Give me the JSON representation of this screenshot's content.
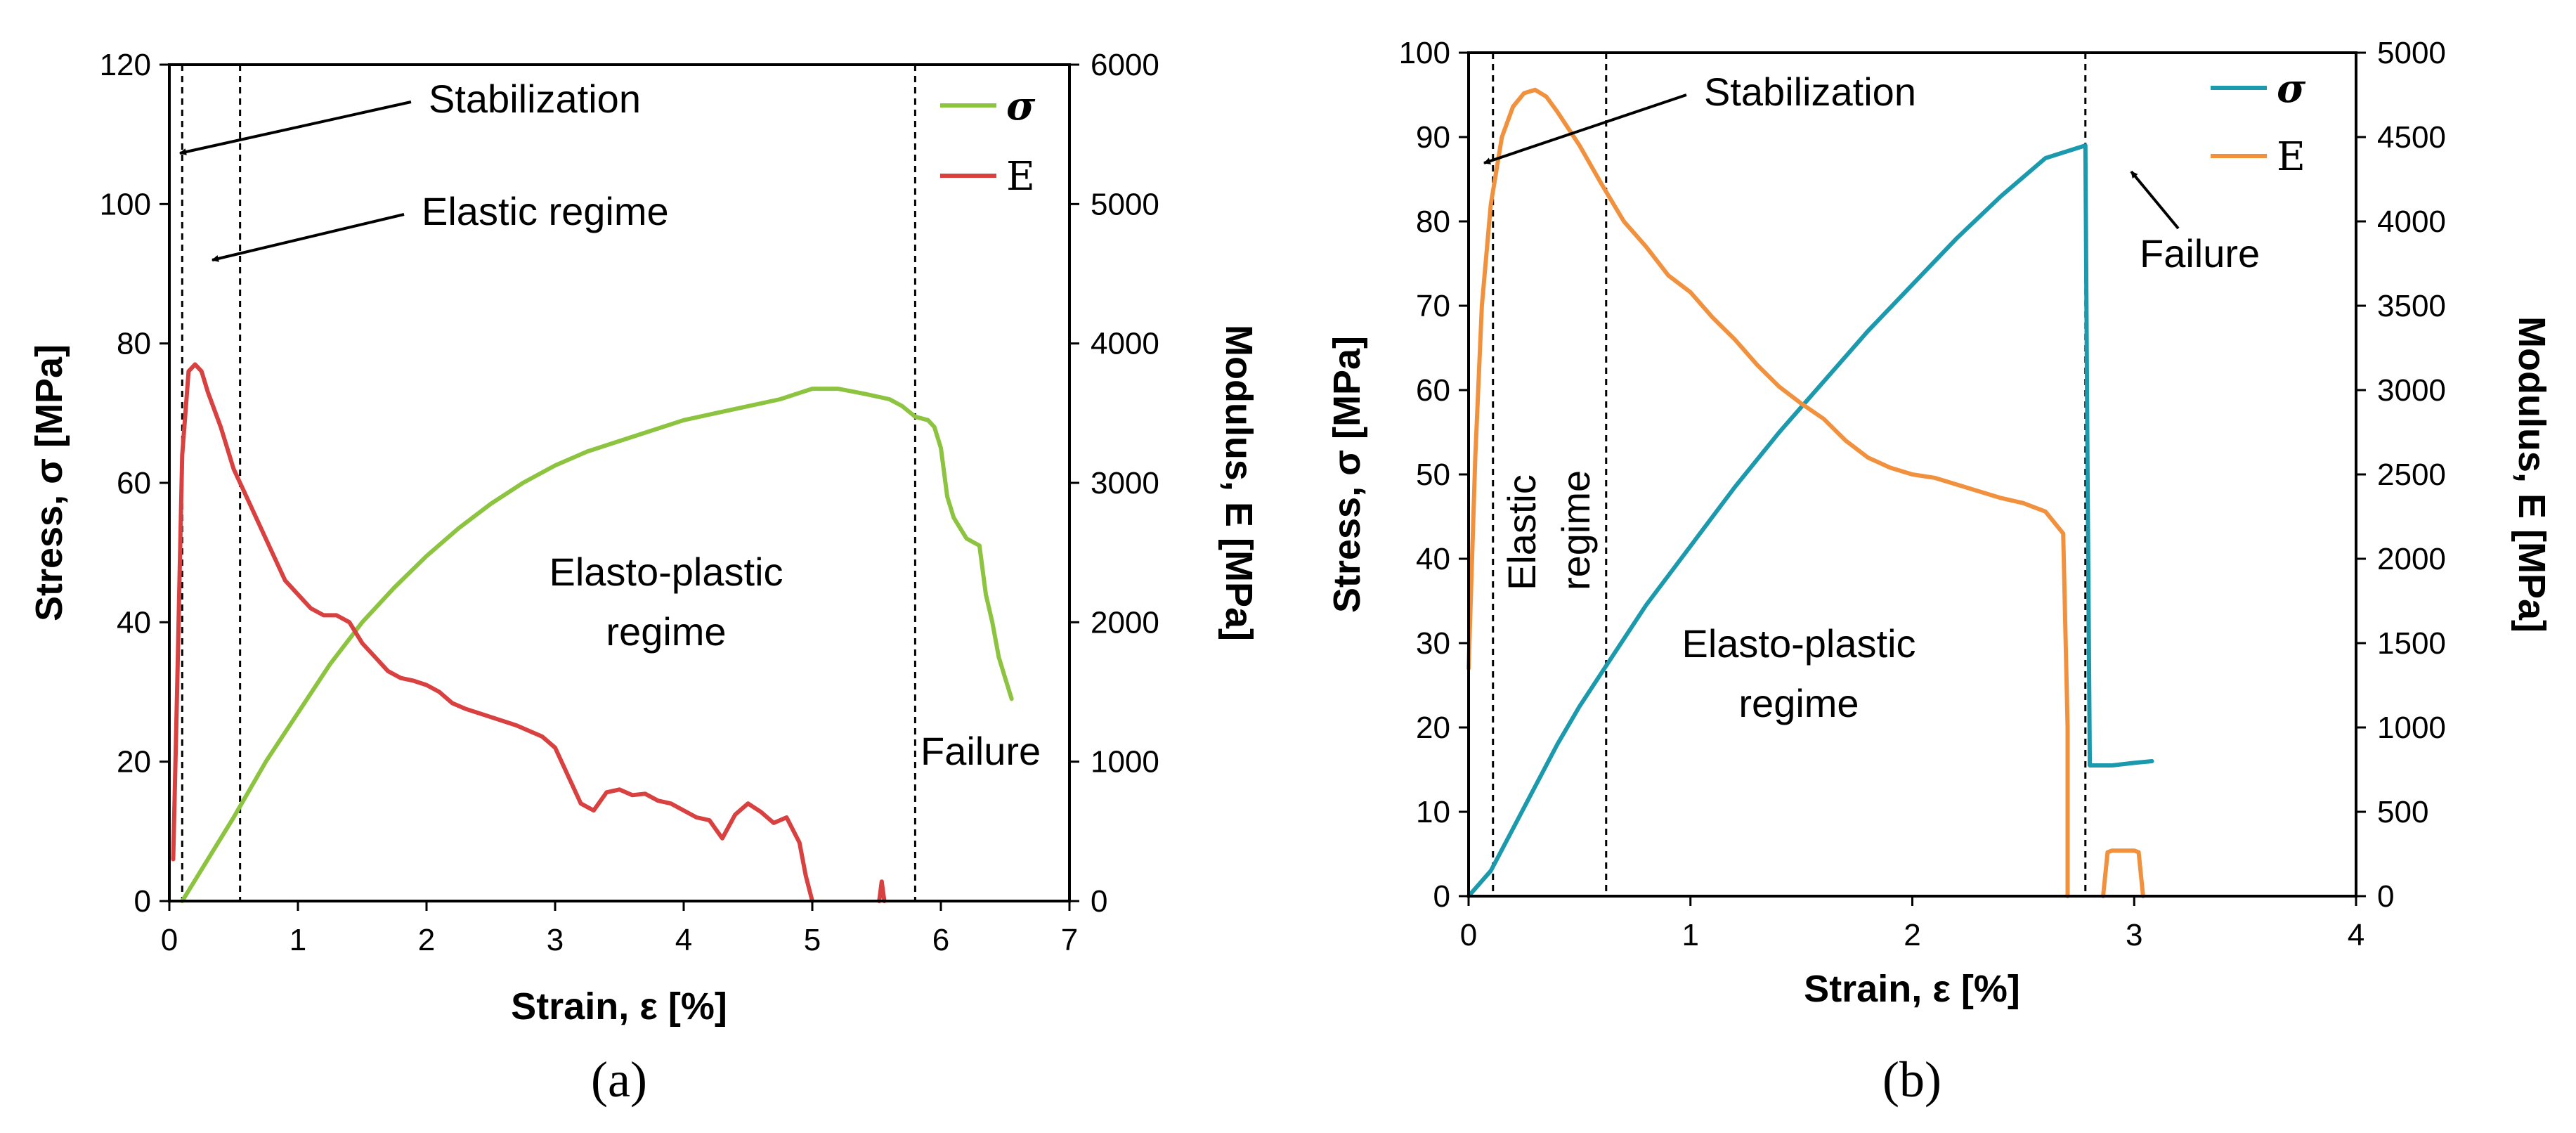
{
  "figure": {
    "panel_a_label": "(a)",
    "panel_b_label": "(b)"
  },
  "colors": {
    "a_stress": "#8cc43f",
    "a_modulus": "#d94040",
    "b_stress": "#1b9aad",
    "b_modulus": "#f2913d"
  },
  "chart_data": [
    {
      "type": "line",
      "panel": "a",
      "xlabel": "Strain, ε [%]",
      "ylabel": "Stress, σ [MPa]",
      "y2label": "Modulus, E [MPa]",
      "xlim": [
        0,
        7
      ],
      "ylim": [
        0,
        120
      ],
      "y2lim": [
        0,
        6000
      ],
      "xticks": [
        0,
        1,
        2,
        3,
        4,
        5,
        6,
        7
      ],
      "yticks": [
        0,
        20,
        40,
        60,
        80,
        100,
        120
      ],
      "y2ticks": [
        0,
        1000,
        2000,
        3000,
        4000,
        5000,
        6000
      ],
      "vlines": [
        0.1,
        0.55,
        5.8
      ],
      "legend": [
        "σ",
        "E"
      ],
      "annotations": {
        "stabilization": "Stabilization",
        "elastic": "Elastic regime",
        "elasto_plastic_1": "Elasto-plastic",
        "elasto_plastic_2": "regime",
        "failure": "Failure"
      },
      "series": [
        {
          "name": "σ",
          "axis": "left",
          "x": [
            0.1,
            0.2,
            0.3,
            0.5,
            0.75,
            1.0,
            1.25,
            1.5,
            1.75,
            2.0,
            2.25,
            2.5,
            2.75,
            3.0,
            3.25,
            3.5,
            3.75,
            4.0,
            4.25,
            4.5,
            4.75,
            5.0,
            5.2,
            5.4,
            5.6,
            5.7,
            5.8,
            5.9,
            5.95,
            6.0,
            6.05,
            6.1,
            6.2,
            6.3,
            6.35,
            6.4,
            6.45,
            6.5,
            6.55
          ],
          "values": [
            0,
            3,
            6,
            12,
            20,
            27,
            34,
            40,
            45,
            49.5,
            53.5,
            57,
            60,
            62.5,
            64.5,
            66,
            67.5,
            69,
            70,
            71,
            72,
            73.5,
            73.5,
            72.8,
            72,
            71,
            69.5,
            69,
            68,
            65,
            58,
            55,
            52,
            51,
            44,
            40,
            35,
            32,
            29
          ]
        },
        {
          "name": "E",
          "axis": "right",
          "x": [
            0.03,
            0.06,
            0.1,
            0.15,
            0.2,
            0.25,
            0.3,
            0.4,
            0.5,
            0.6,
            0.7,
            0.8,
            0.9,
            1.0,
            1.1,
            1.2,
            1.3,
            1.4,
            1.5,
            1.6,
            1.7,
            1.8,
            1.9,
            2.0,
            2.1,
            2.2,
            2.3,
            2.5,
            2.7,
            2.9,
            3.0,
            3.1,
            3.2,
            3.3,
            3.4,
            3.5,
            3.6,
            3.7,
            3.8,
            3.9,
            4.0,
            4.1,
            4.2,
            4.3,
            4.4,
            4.5,
            4.6,
            4.7,
            4.8,
            4.9,
            4.95,
            5.0
          ],
          "values": [
            300,
            1500,
            3200,
            3800,
            3850,
            3800,
            3650,
            3400,
            3100,
            2900,
            2700,
            2500,
            2300,
            2200,
            2100,
            2050,
            2050,
            2000,
            1850,
            1750,
            1650,
            1600,
            1580,
            1550,
            1500,
            1420,
            1380,
            1320,
            1260,
            1180,
            1100,
            900,
            700,
            650,
            780,
            800,
            760,
            770,
            720,
            700,
            650,
            600,
            580,
            450,
            620,
            700,
            640,
            560,
            600,
            420,
            180,
            0
          ]
        },
        {
          "name": "E",
          "axis": "right",
          "x": [
            5.52,
            5.54,
            5.56
          ],
          "values": [
            0,
            140,
            0
          ]
        }
      ]
    },
    {
      "type": "line",
      "panel": "b",
      "xlabel": "Strain, ε [%]",
      "ylabel": "Stress, σ [MPa]",
      "y2label": "Modulus, E [MPa]",
      "xlim": [
        0,
        4
      ],
      "ylim": [
        0,
        100
      ],
      "y2lim": [
        0,
        5000
      ],
      "xticks": [
        0,
        1,
        2,
        3,
        4
      ],
      "yticks": [
        0,
        10,
        20,
        30,
        40,
        50,
        60,
        70,
        80,
        90,
        100
      ],
      "y2ticks": [
        0,
        500,
        1000,
        1500,
        2000,
        2500,
        3000,
        3500,
        4000,
        4500,
        5000
      ],
      "vlines": [
        0.11,
        0.62,
        2.78
      ],
      "legend": [
        "σ",
        "E"
      ],
      "annotations": {
        "stabilization": "Stabilization",
        "elastic_1": "Elastic",
        "elastic_2": "regime",
        "elasto_plastic_1": "Elasto-plastic",
        "elasto_plastic_2": "regime",
        "failure": "Failure"
      },
      "series": [
        {
          "name": "σ",
          "axis": "left",
          "x": [
            0,
            0.05,
            0.1,
            0.2,
            0.3,
            0.4,
            0.5,
            0.6,
            0.8,
            1.0,
            1.2,
            1.4,
            1.6,
            1.8,
            2.0,
            2.2,
            2.4,
            2.6,
            2.78,
            2.79,
            2.8,
            2.9,
            3.0,
            3.08
          ],
          "values": [
            0,
            1.5,
            3,
            8,
            13,
            18,
            22.5,
            26.5,
            34.5,
            41.5,
            48.5,
            55,
            61,
            67,
            72.5,
            78,
            83,
            87.5,
            89,
            50,
            15.5,
            15.5,
            15.8,
            16
          ]
        },
        {
          "name": "E",
          "axis": "right",
          "x": [
            0,
            0.03,
            0.06,
            0.1,
            0.15,
            0.2,
            0.25,
            0.3,
            0.35,
            0.4,
            0.5,
            0.6,
            0.7,
            0.8,
            0.9,
            1.0,
            1.1,
            1.2,
            1.3,
            1.4,
            1.5,
            1.6,
            1.7,
            1.8,
            1.9,
            2.0,
            2.1,
            2.2,
            2.3,
            2.4,
            2.5,
            2.6,
            2.68,
            2.7,
            2.7
          ],
          "values": [
            1350,
            2600,
            3500,
            4100,
            4500,
            4680,
            4760,
            4780,
            4740,
            4650,
            4450,
            4220,
            4000,
            3850,
            3680,
            3580,
            3430,
            3300,
            3150,
            3020,
            2920,
            2830,
            2700,
            2600,
            2540,
            2500,
            2480,
            2440,
            2400,
            2360,
            2330,
            2280,
            2150,
            1000,
            0
          ]
        },
        {
          "name": "E",
          "axis": "right",
          "x": [
            2.86,
            2.88,
            2.9,
            3.0,
            3.02,
            3.04
          ],
          "values": [
            0,
            260,
            270,
            270,
            260,
            0
          ]
        }
      ]
    }
  ]
}
